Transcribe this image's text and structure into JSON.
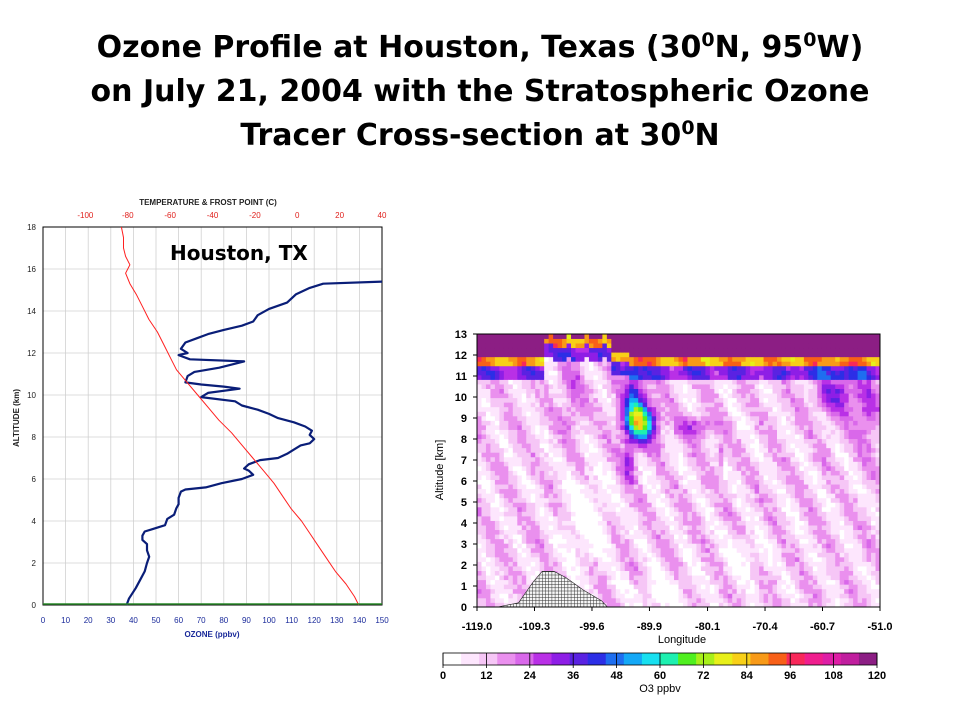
{
  "slide": {
    "title_line1_a": "Ozone Profile at Houston, Texas (30",
    "title_sup1": "0",
    "title_line1_b": "N, 95",
    "title_sup2": "0",
    "title_line1_c": "W)",
    "title_line2": "on July 21, 2004 with the Stratospheric Ozone",
    "title_line3_a": "Tracer Cross-section at 30",
    "title_sup3": "0",
    "title_line3_b": "N"
  },
  "colors": {
    "ozone_line": "#0a1e78",
    "temperature_line": "#ff2020",
    "frost_line": "#2a8a2a",
    "top_axis_text": "#e0201c",
    "bottom_axis_label": "#1a2a9a",
    "colorbar": [
      "#ffffff",
      "#fde6fd",
      "#f6c6f6",
      "#ea90ee",
      "#d968ea",
      "#b930e6",
      "#8e1ee6",
      "#5a22e2",
      "#2c2ee6",
      "#1e6ef0",
      "#14a8f6",
      "#18e0f0",
      "#1ef0b0",
      "#50f020",
      "#a8f01a",
      "#e8f01a",
      "#f8d018",
      "#f89a18",
      "#f86018",
      "#f8285a",
      "#f01e8e",
      "#de1ea6",
      "#c01e9e",
      "#8c1e84"
    ]
  },
  "chart_data": [
    {
      "type": "line",
      "title": "",
      "annotation": "Houston, TX",
      "xlabel": "OZONE (ppbv)",
      "ylabel": "ALTITUDE (km)",
      "x2label": "TEMPERATURE & FROST POINT (C)",
      "xlim": [
        0,
        150
      ],
      "ylim": [
        0,
        18
      ],
      "x2lim": [
        -120,
        40
      ],
      "x_ticks": [
        "0",
        "10",
        "20",
        "30",
        "40",
        "50",
        "60",
        "70",
        "80",
        "90",
        "100",
        "110",
        "120",
        "130",
        "140",
        "150"
      ],
      "y_ticks": [
        "0",
        "2",
        "4",
        "6",
        "8",
        "10",
        "12",
        "14",
        "16",
        "18"
      ],
      "x2_ticks": [
        "-100",
        "-80",
        "-60",
        "-40",
        "-20",
        "0",
        "20",
        "40"
      ],
      "grid": true,
      "series": [
        {
          "axis": "ozone",
          "points": [
            [
              37,
              0
            ],
            [
              38,
              0.3
            ],
            [
              41,
              0.8
            ],
            [
              43,
              1.2
            ],
            [
              45,
              1.6
            ],
            [
              46,
              2.0
            ],
            [
              47,
              2.3
            ],
            [
              46,
              2.6
            ],
            [
              46,
              2.9
            ],
            [
              44,
              3.1
            ],
            [
              44,
              3.3
            ],
            [
              45,
              3.5
            ],
            [
              48,
              3.6
            ],
            [
              54,
              3.8
            ],
            [
              55,
              4.1
            ],
            [
              58,
              4.3
            ],
            [
              59,
              4.6
            ],
            [
              60,
              4.8
            ],
            [
              60,
              5.1
            ],
            [
              61,
              5.4
            ],
            [
              63,
              5.5
            ],
            [
              72,
              5.6
            ],
            [
              79,
              5.8
            ],
            [
              88,
              6.0
            ],
            [
              93,
              6.2
            ],
            [
              91,
              6.4
            ],
            [
              89,
              6.5
            ],
            [
              91,
              6.7
            ],
            [
              96,
              6.9
            ],
            [
              104,
              7.0
            ],
            [
              108,
              7.2
            ],
            [
              111,
              7.4
            ],
            [
              114,
              7.6
            ],
            [
              118,
              7.7
            ],
            [
              120,
              7.9
            ],
            [
              118,
              8.1
            ],
            [
              119,
              8.3
            ],
            [
              116,
              8.5
            ],
            [
              111,
              8.7
            ],
            [
              104,
              8.9
            ],
            [
              100,
              9.1
            ],
            [
              95,
              9.3
            ],
            [
              88,
              9.5
            ],
            [
              85,
              9.7
            ],
            [
              70,
              9.9
            ],
            [
              73,
              10.1
            ],
            [
              87,
              10.3
            ],
            [
              80,
              10.4
            ],
            [
              70,
              10.5
            ],
            [
              63,
              10.6
            ],
            [
              64,
              10.9
            ],
            [
              67,
              11.1
            ],
            [
              78,
              11.3
            ],
            [
              89,
              11.6
            ],
            [
              65,
              11.7
            ],
            [
              60,
              11.9
            ],
            [
              64,
              12.0
            ],
            [
              61,
              12.2
            ],
            [
              63,
              12.5
            ],
            [
              68,
              12.7
            ],
            [
              73,
              12.9
            ],
            [
              80,
              13.1
            ],
            [
              88,
              13.3
            ],
            [
              93,
              13.5
            ],
            [
              95,
              13.8
            ],
            [
              100,
              14.1
            ],
            [
              108,
              14.4
            ],
            [
              112,
              14.8
            ],
            [
              118,
              15.1
            ],
            [
              124,
              15.3
            ],
            [
              150,
              15.4
            ]
          ]
        },
        {
          "axis": "temperature",
          "points": [
            [
              29,
              0
            ],
            [
              27,
              0.4
            ],
            [
              23,
              1.0
            ],
            [
              18,
              1.6
            ],
            [
              14,
              2.2
            ],
            [
              10,
              2.8
            ],
            [
              6,
              3.4
            ],
            [
              2,
              4.0
            ],
            [
              -3,
              4.6
            ],
            [
              -7,
              5.2
            ],
            [
              -11,
              5.8
            ],
            [
              -16,
              6.4
            ],
            [
              -21,
              7.0
            ],
            [
              -26,
              7.6
            ],
            [
              -31,
              8.2
            ],
            [
              -37,
              8.8
            ],
            [
              -42,
              9.4
            ],
            [
              -47,
              10.0
            ],
            [
              -52,
              10.6
            ],
            [
              -57,
              11.2
            ],
            [
              -60,
              11.8
            ],
            [
              -63,
              12.4
            ],
            [
              -66,
              13.0
            ],
            [
              -70,
              13.6
            ],
            [
              -73,
              14.2
            ],
            [
              -76,
              14.8
            ],
            [
              -79,
              15.3
            ],
            [
              -81,
              15.8
            ],
            [
              -79,
              16.2
            ],
            [
              -81,
              16.6
            ],
            [
              -82,
              17.0
            ],
            [
              -82,
              17.5
            ],
            [
              -83,
              18.0
            ]
          ]
        },
        {
          "axis": "frost_point",
          "points": [
            [
              -120,
              0.05
            ],
            [
              40,
              0.05
            ]
          ]
        }
      ]
    },
    {
      "type": "heatmap",
      "title": "",
      "xlabel": "Longitude",
      "ylabel": "Altitude [km]",
      "colorbar_label": "O3 ppbv",
      "xlim": [
        -119.0,
        -51.0
      ],
      "ylim": [
        0,
        13
      ],
      "x_ticks": [
        "-119.0",
        "-109.3",
        "-99.6",
        "-89.9",
        "-80.1",
        "-70.4",
        "-60.7",
        "-51.0"
      ],
      "y_ticks": [
        "0",
        "1",
        "2",
        "3",
        "4",
        "5",
        "6",
        "7",
        "8",
        "9",
        "10",
        "11",
        "12",
        "13"
      ],
      "colorbar_ticks": [
        "0",
        "12",
        "24",
        "36",
        "48",
        "60",
        "72",
        "84",
        "96",
        "108",
        "120"
      ],
      "colorbar_range": [
        0,
        120
      ],
      "colorbar_bins": 24
    }
  ]
}
